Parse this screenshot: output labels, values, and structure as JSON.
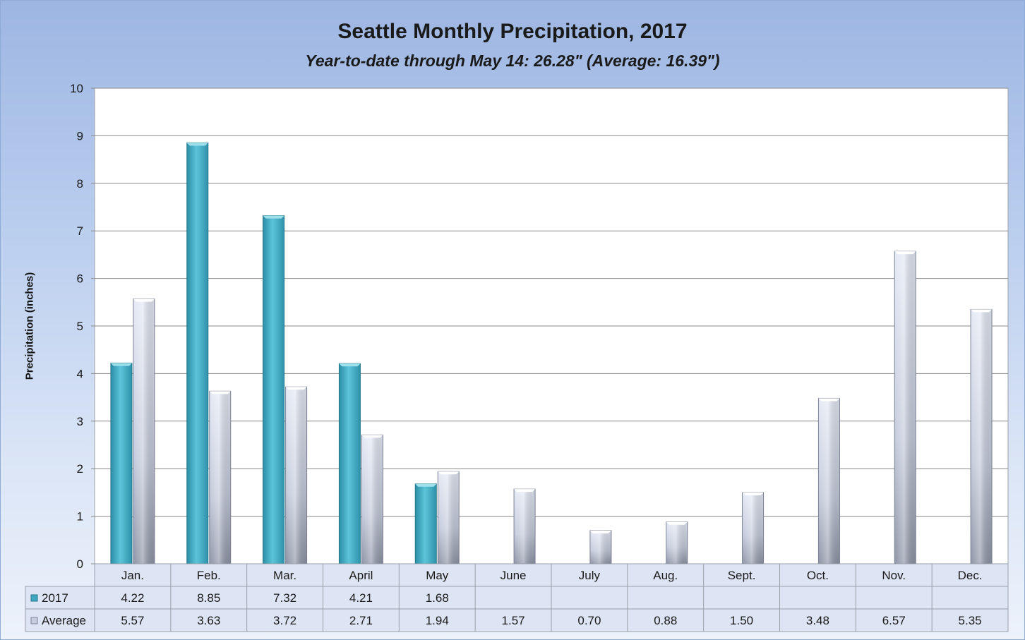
{
  "title": "Seattle Monthly Precipitation, 2017",
  "subtitle": "Year-to-date through May 14: 26.28\" (Average: 16.39\")",
  "chart_data": {
    "type": "bar",
    "ylabel": "Precipitation (inches)",
    "xlabel": "",
    "ylim": [
      0,
      10
    ],
    "yticks": [
      "0",
      "1",
      "2",
      "3",
      "4",
      "5",
      "6",
      "7",
      "8",
      "9",
      "10"
    ],
    "grid": true,
    "categories": [
      "Jan.",
      "Feb.",
      "Mar.",
      "April",
      "May",
      "June",
      "July",
      "Aug.",
      "Sept.",
      "Oct.",
      "Nov.",
      "Dec."
    ],
    "series": [
      {
        "name": "2017",
        "color": "#4bb3c9",
        "values": [
          4.22,
          8.85,
          7.32,
          4.21,
          1.68,
          null,
          null,
          null,
          null,
          null,
          null,
          null
        ],
        "labels": [
          "4.22",
          "8.85",
          "7.32",
          "4.21",
          "1.68",
          "",
          "",
          "",
          "",
          "",
          "",
          ""
        ]
      },
      {
        "name": "Average",
        "color": "#c7cedf",
        "values": [
          5.57,
          3.63,
          3.72,
          2.71,
          1.94,
          1.57,
          0.7,
          0.88,
          1.5,
          3.48,
          6.57,
          5.35
        ],
        "labels": [
          "5.57",
          "3.63",
          "3.72",
          "2.71",
          "1.94",
          "1.57",
          "0.70",
          "0.88",
          "1.50",
          "3.48",
          "6.57",
          "5.35"
        ]
      }
    ],
    "legend": "data-table"
  }
}
